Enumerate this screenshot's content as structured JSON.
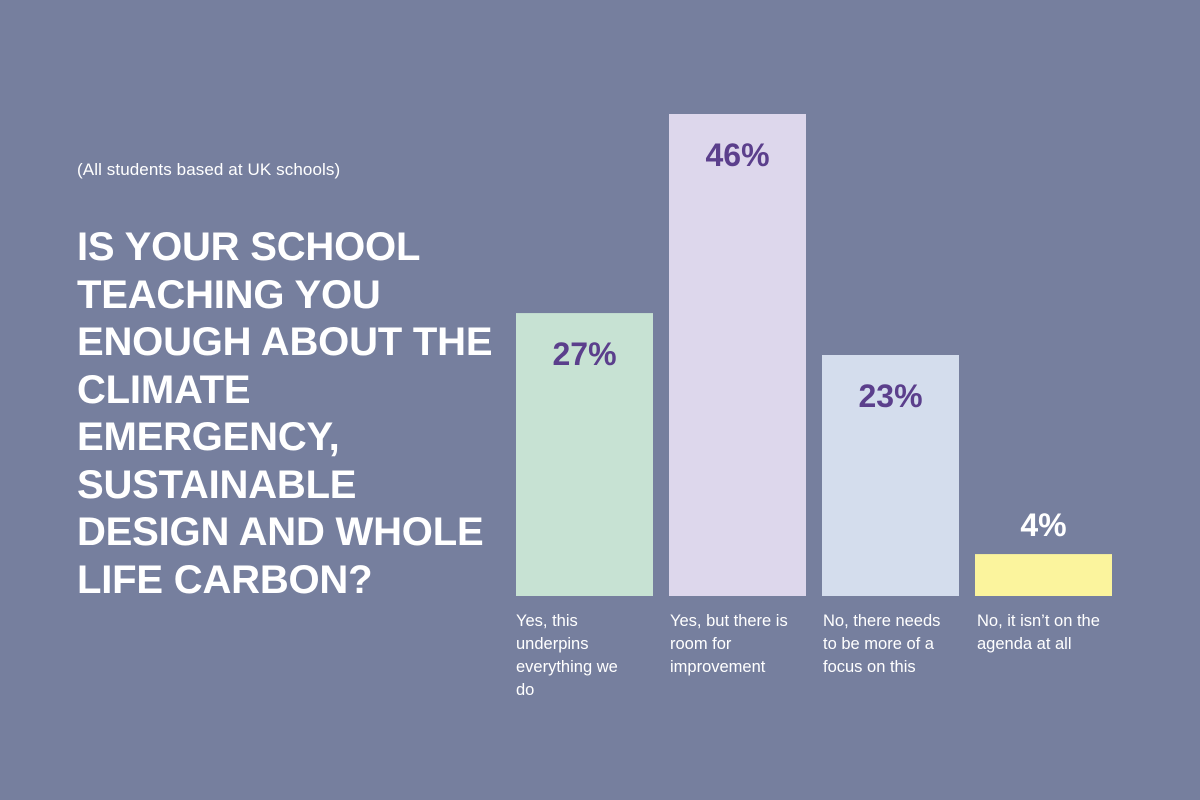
{
  "subtitle": "(All students based at UK schools)",
  "title": "IS YOUR SCHOOL TEACHING YOU ENOUGH ABOUT THE CLIMATE EMERGENCY, SUSTAINABLE DESIGN AND WHOLE LIFE CARBON?",
  "colors": {
    "background": "#767f9e",
    "value_label_inside": "#5b3f8c",
    "value_label_outside": "#ffffff"
  },
  "chart_data": {
    "type": "bar",
    "categories": [
      "Yes, this underpins everything we do",
      "Yes, but there is room for improvement",
      "No, there needs to be more of a focus on this",
      "No, it isn’t on the agenda at all"
    ],
    "values": [
      27,
      46,
      23,
      4
    ],
    "value_labels": [
      "27%",
      "46%",
      "23%",
      "4%"
    ],
    "bar_colors": [
      "#c7e2d3",
      "#ddd7ec",
      "#d4dded",
      "#fbf49d"
    ],
    "ylim": [
      0,
      46
    ],
    "grid": false,
    "xlabel": "",
    "ylabel": ""
  }
}
